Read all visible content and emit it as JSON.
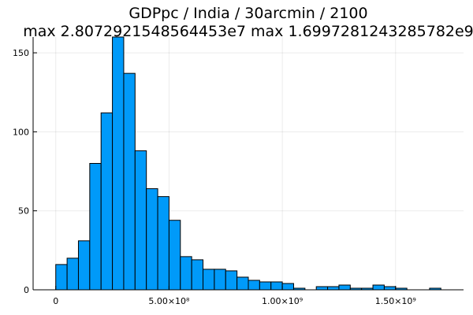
{
  "chart_data": {
    "type": "bar",
    "title": "GDPpc / India / 30arcmin / 2100",
    "subtitle": "max 2.8072921548564453e7  max 1.6997281243285782e9",
    "bin_width": 50000000,
    "bins": [
      {
        "x0": 0,
        "x1": 50000000,
        "count": 16
      },
      {
        "x0": 50000000,
        "x1": 100000000,
        "count": 20
      },
      {
        "x0": 100000000,
        "x1": 150000000,
        "count": 31
      },
      {
        "x0": 150000000,
        "x1": 200000000,
        "count": 80
      },
      {
        "x0": 200000000,
        "x1": 250000000,
        "count": 112
      },
      {
        "x0": 250000000,
        "x1": 300000000,
        "count": 160
      },
      {
        "x0": 300000000,
        "x1": 350000000,
        "count": 137
      },
      {
        "x0": 350000000,
        "x1": 400000000,
        "count": 88
      },
      {
        "x0": 400000000,
        "x1": 450000000,
        "count": 64
      },
      {
        "x0": 450000000,
        "x1": 500000000,
        "count": 59
      },
      {
        "x0": 500000000,
        "x1": 550000000,
        "count": 44
      },
      {
        "x0": 550000000,
        "x1": 600000000,
        "count": 21
      },
      {
        "x0": 600000000,
        "x1": 650000000,
        "count": 19
      },
      {
        "x0": 650000000,
        "x1": 700000000,
        "count": 13
      },
      {
        "x0": 700000000,
        "x1": 750000000,
        "count": 13
      },
      {
        "x0": 750000000,
        "x1": 800000000,
        "count": 12
      },
      {
        "x0": 800000000,
        "x1": 850000000,
        "count": 8
      },
      {
        "x0": 850000000,
        "x1": 900000000,
        "count": 6
      },
      {
        "x0": 900000000,
        "x1": 950000000,
        "count": 5
      },
      {
        "x0": 950000000,
        "x1": 1000000000,
        "count": 5
      },
      {
        "x0": 1000000000,
        "x1": 1050000000,
        "count": 4
      },
      {
        "x0": 1050000000,
        "x1": 1100000000,
        "count": 1
      },
      {
        "x0": 1100000000,
        "x1": 1150000000,
        "count": 0
      },
      {
        "x0": 1150000000,
        "x1": 1200000000,
        "count": 2
      },
      {
        "x0": 1200000000,
        "x1": 1250000000,
        "count": 2
      },
      {
        "x0": 1250000000,
        "x1": 1300000000,
        "count": 3
      },
      {
        "x0": 1300000000,
        "x1": 1350000000,
        "count": 1
      },
      {
        "x0": 1350000000,
        "x1": 1400000000,
        "count": 1
      },
      {
        "x0": 1400000000,
        "x1": 1450000000,
        "count": 3
      },
      {
        "x0": 1450000000,
        "x1": 1500000000,
        "count": 2
      },
      {
        "x0": 1500000000,
        "x1": 1550000000,
        "count": 1
      },
      {
        "x0": 1550000000,
        "x1": 1600000000,
        "count": 0
      },
      {
        "x0": 1600000000,
        "x1": 1650000000,
        "count": 0
      },
      {
        "x0": 1650000000,
        "x1": 1700000000,
        "count": 1
      }
    ],
    "xlim": [
      -100000000,
      1800000000
    ],
    "ylim": [
      0,
      160
    ],
    "x_ticks": [
      {
        "value": 0,
        "label": "0"
      },
      {
        "value": 500000000,
        "label": "5.00×10⁸"
      },
      {
        "value": 1000000000,
        "label": "1.00×10⁹"
      },
      {
        "value": 1500000000,
        "label": "1.50×10⁹"
      }
    ],
    "y_ticks": [
      {
        "value": 0,
        "label": "0"
      },
      {
        "value": 50,
        "label": "50"
      },
      {
        "value": 100,
        "label": "100"
      },
      {
        "value": 150,
        "label": "150"
      }
    ],
    "grid": true,
    "legend": "none",
    "colors": {
      "bar_fill": "#009af9",
      "bar_stroke": "#000000"
    }
  }
}
